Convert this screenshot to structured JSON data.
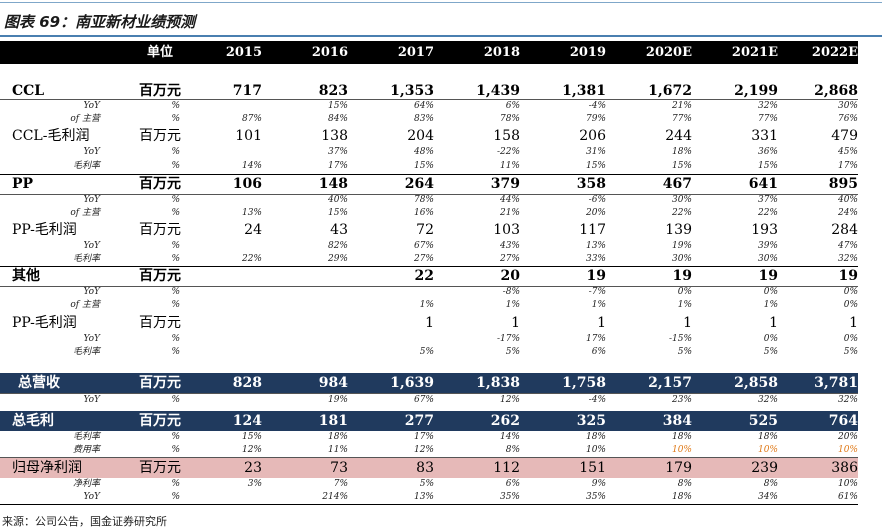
{
  "title": "图表 69：南亚新材业绩预测",
  "header": {
    "unit": "单位",
    "years": [
      "2015",
      "2016",
      "2017",
      "2018",
      "2019",
      "2020E",
      "2021E",
      "2022E"
    ]
  },
  "rows": [
    {
      "id": "ccl",
      "style": "main",
      "label": "CCL",
      "unit": "百万元",
      "values": [
        "717",
        "823",
        "1,353",
        "1,439",
        "1,381",
        "1,672",
        "2,199",
        "2,868"
      ]
    },
    {
      "id": "ccl-yoy",
      "style": "sub",
      "label": "YoY",
      "unit": "%",
      "values": [
        "",
        "15%",
        "64%",
        "6%",
        "-4%",
        "21%",
        "32%",
        "30%"
      ]
    },
    {
      "id": "ccl-of",
      "style": "sub",
      "label": "of 主营",
      "unit": "%",
      "values": [
        "87%",
        "84%",
        "83%",
        "78%",
        "79%",
        "77%",
        "77%",
        "76%"
      ]
    },
    {
      "id": "ccl-gp",
      "style": "main-light",
      "label": "CCL-毛利润",
      "unit": "百万元",
      "values": [
        "101",
        "138",
        "204",
        "158",
        "206",
        "244",
        "331",
        "479"
      ]
    },
    {
      "id": "ccl-gp-yoy",
      "style": "sub",
      "label": "YoY",
      "unit": "%",
      "values": [
        "",
        "37%",
        "48%",
        "-22%",
        "31%",
        "18%",
        "36%",
        "45%"
      ]
    },
    {
      "id": "ccl-gm",
      "style": "sub",
      "label": "毛利率",
      "unit": "%",
      "values": [
        "14%",
        "17%",
        "15%",
        "11%",
        "15%",
        "15%",
        "15%",
        "17%"
      ]
    },
    {
      "id": "pp",
      "style": "main",
      "label": "PP",
      "unit": "百万元",
      "values": [
        "106",
        "148",
        "264",
        "379",
        "358",
        "467",
        "641",
        "895"
      ]
    },
    {
      "id": "pp-yoy",
      "style": "sub",
      "label": "YoY",
      "unit": "%",
      "values": [
        "",
        "40%",
        "78%",
        "44%",
        "-6%",
        "30%",
        "37%",
        "40%"
      ]
    },
    {
      "id": "pp-of",
      "style": "sub",
      "label": "of 主营",
      "unit": "%",
      "values": [
        "13%",
        "15%",
        "16%",
        "21%",
        "20%",
        "22%",
        "22%",
        "24%"
      ]
    },
    {
      "id": "pp-gp",
      "style": "main-light",
      "label": "PP-毛利润",
      "unit": "百万元",
      "values": [
        "24",
        "43",
        "72",
        "103",
        "117",
        "139",
        "193",
        "284"
      ]
    },
    {
      "id": "pp-gp-yoy",
      "style": "sub",
      "label": "YoY",
      "unit": "%",
      "values": [
        "",
        "82%",
        "67%",
        "43%",
        "13%",
        "19%",
        "39%",
        "47%"
      ]
    },
    {
      "id": "pp-gm",
      "style": "sub",
      "label": "毛利率",
      "unit": "%",
      "values": [
        "22%",
        "29%",
        "27%",
        "27%",
        "33%",
        "30%",
        "30%",
        "32%"
      ]
    },
    {
      "id": "other",
      "style": "main",
      "label": "其他",
      "unit": "百万元",
      "values": [
        "",
        "",
        "22",
        "20",
        "19",
        "19",
        "19",
        "19"
      ]
    },
    {
      "id": "other-yoy",
      "style": "sub",
      "label": "YoY",
      "unit": "%",
      "values": [
        "",
        "",
        "",
        "-8%",
        "-7%",
        "0%",
        "0%",
        "0%"
      ]
    },
    {
      "id": "other-of",
      "style": "sub",
      "label": "of 主营",
      "unit": "%",
      "values": [
        "",
        "",
        "1%",
        "1%",
        "1%",
        "1%",
        "1%",
        "0%"
      ]
    },
    {
      "id": "other-gp",
      "style": "main-light",
      "label": "PP-毛利润",
      "unit": "百万元",
      "values": [
        "",
        "",
        "1",
        "1",
        "1",
        "1",
        "1",
        "1"
      ]
    },
    {
      "id": "other-gp-yoy",
      "style": "sub",
      "label": "YoY",
      "unit": "%",
      "values": [
        "",
        "",
        "",
        "-17%",
        "17%",
        "-15%",
        "0%",
        "0%"
      ]
    },
    {
      "id": "other-gm",
      "style": "sub",
      "label": "毛利率",
      "unit": "%",
      "values": [
        "",
        "",
        "5%",
        "5%",
        "6%",
        "5%",
        "5%",
        "5%"
      ]
    },
    {
      "id": "revenue",
      "style": "band-blue",
      "label": "总营收",
      "unit": "百万元",
      "values": [
        "828",
        "984",
        "1,639",
        "1,838",
        "1,758",
        "2,157",
        "2,858",
        "3,781"
      ]
    },
    {
      "id": "revenue-yoy",
      "style": "sub",
      "label": "YoY",
      "unit": "%",
      "values": [
        "",
        "19%",
        "67%",
        "12%",
        "-4%",
        "23%",
        "32%",
        "32%"
      ]
    },
    {
      "id": "gross",
      "style": "band-blue",
      "label": "总毛利",
      "unit": "百万元",
      "values": [
        "124",
        "181",
        "277",
        "262",
        "325",
        "384",
        "525",
        "764"
      ]
    },
    {
      "id": "gross-gm",
      "style": "sub",
      "label": "毛利率",
      "unit": "%",
      "values": [
        "15%",
        "18%",
        "17%",
        "14%",
        "18%",
        "18%",
        "18%",
        "20%"
      ]
    },
    {
      "id": "expense",
      "style": "sub",
      "label": "费用率",
      "unit": "%",
      "values": [
        "12%",
        "11%",
        "12%",
        "8%",
        "10%",
        "10%",
        "10%",
        "10%"
      ],
      "orange_from": 5
    },
    {
      "id": "netprofit",
      "style": "band-pink",
      "label": "归母净利润",
      "unit": "百万元",
      "values": [
        "23",
        "73",
        "83",
        "112",
        "151",
        "179",
        "239",
        "386"
      ]
    },
    {
      "id": "net-margin",
      "style": "sub",
      "label": "净利率",
      "unit": "%",
      "values": [
        "3%",
        "7%",
        "5%",
        "6%",
        "9%",
        "8%",
        "8%",
        "10%"
      ]
    },
    {
      "id": "net-yoy",
      "style": "sub",
      "label": "YoY",
      "unit": "%",
      "values": [
        "",
        "214%",
        "13%",
        "35%",
        "35%",
        "18%",
        "34%",
        "61%"
      ]
    }
  ],
  "source": "来源：公司公告，国金证券研究所",
  "colors": {
    "header": "#000000",
    "band_blue": "#203a5e",
    "band_pink": "#e6b9b8",
    "orange": "#e07b1a"
  }
}
